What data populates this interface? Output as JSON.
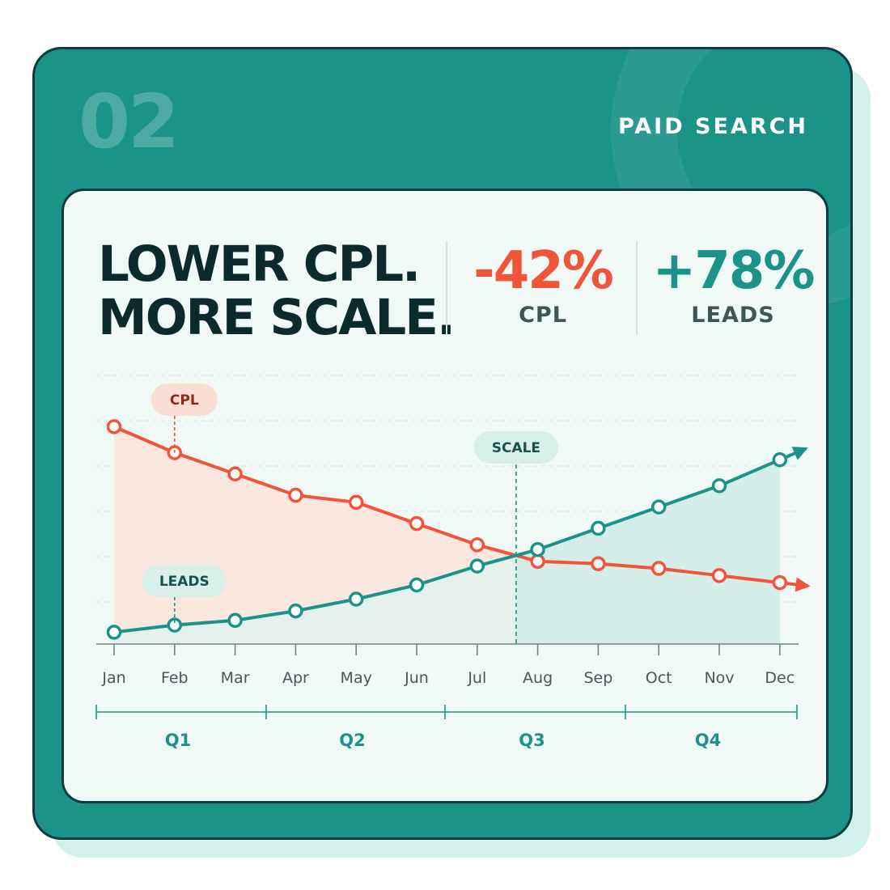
{
  "header": {
    "number": "02",
    "tagline": "PAID SEARCH"
  },
  "headline": {
    "line1": "LOWER CPL.",
    "line2": "MORE SCALE."
  },
  "stats": [
    {
      "value": "-42%",
      "label": "CPL",
      "color": "#f0553a"
    },
    {
      "value": "+78%",
      "label": "LEADS",
      "color": "#1b9388"
    }
  ],
  "colors": {
    "card": "#1b9388",
    "dark": "#0d3b3e",
    "cpl": "#f0553a",
    "leads": "#1b9388"
  },
  "chart_data": {
    "type": "line",
    "title": "",
    "xlabel": "",
    "ylabel": "",
    "categories": [
      "Jan",
      "Feb",
      "Mar",
      "Apr",
      "May",
      "Jun",
      "Jul",
      "Aug",
      "Sep",
      "Oct",
      "Nov",
      "Dec"
    ],
    "ylim": [
      0,
      100
    ],
    "grid": true,
    "series": [
      {
        "name": "CPL",
        "color": "#f0553a",
        "values": [
          92,
          81,
          72,
          63,
          60,
          51,
          42,
          35,
          34,
          32,
          29,
          26
        ]
      },
      {
        "name": "LEADS",
        "color": "#1b9388",
        "values": [
          5,
          8,
          10,
          14,
          19,
          25,
          33,
          40,
          49,
          58,
          67,
          78
        ]
      }
    ],
    "series_labels": [
      {
        "text": "CPL",
        "series": "CPL",
        "at": "Feb"
      },
      {
        "text": "LEADS",
        "series": "LEADS",
        "at": "Feb"
      }
    ],
    "annotations": [
      {
        "text": "SCALE",
        "between": [
          "Jul",
          "Aug"
        ]
      }
    ],
    "quarters": [
      "Q1",
      "Q2",
      "Q3",
      "Q4"
    ]
  }
}
